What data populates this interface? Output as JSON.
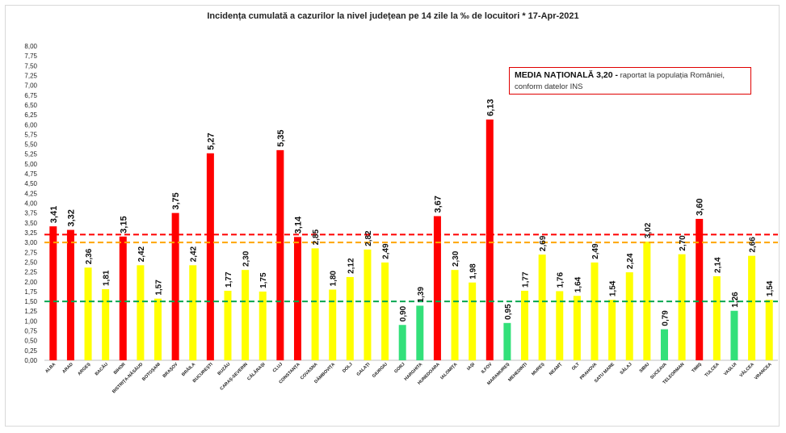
{
  "chart_data": {
    "type": "bar",
    "title": "Incidența cumulată a cazurilor la nivel județean pe 14 zile la ‰ de locuitori *   17-Apr-2021",
    "categories": [
      "ALBA",
      "ARAD",
      "ARGEȘ",
      "BACĂU",
      "BIHOR",
      "BISTRIȚA-NĂSĂUD",
      "BOTOȘANI",
      "BRAȘOV",
      "BRĂILA",
      "BUCUREȘTI",
      "BUZĂU",
      "CARAȘ-SEVERIN",
      "CĂLĂRAȘI",
      "CLUJ",
      "CONSTANȚA",
      "COVASNA",
      "DÂMBOVIȚA",
      "DOLJ",
      "GALAȚI",
      "GIURGIU",
      "GORJ",
      "HARGHITA",
      "HUNEDOARA",
      "IALOMIȚA",
      "IAȘI",
      "ILFOV",
      "MARAMUREȘ",
      "MEHEDINȚI",
      "MUREȘ",
      "NEAMȚ",
      "OLT",
      "PRAHOVA",
      "SATU MARE",
      "SĂLAJ",
      "SIBIU",
      "SUCEAVA",
      "TELEORMAN",
      "TIMIȘ",
      "TULCEA",
      "VASLUI",
      "VÂLCEA",
      "VRANCEA"
    ],
    "values": [
      3.41,
      3.32,
      2.36,
      1.81,
      3.15,
      2.42,
      1.57,
      3.75,
      2.42,
      5.27,
      1.77,
      2.3,
      1.75,
      5.35,
      3.14,
      2.85,
      1.8,
      2.12,
      2.82,
      2.49,
      0.9,
      1.39,
      3.67,
      2.3,
      1.98,
      6.13,
      0.95,
      1.77,
      2.69,
      1.76,
      1.64,
      2.49,
      1.54,
      2.24,
      3.02,
      0.79,
      2.7,
      3.6,
      2.14,
      1.26,
      2.66,
      1.54
    ],
    "value_labels": [
      "3,41",
      "3,32",
      "2,36",
      "1,81",
      "3,15",
      "2,42",
      "1,57",
      "3,75",
      "2,42",
      "5,27",
      "1,77",
      "2,30",
      "1,75",
      "5,35",
      "3,14",
      "2,85",
      "1,80",
      "2,12",
      "2,82",
      "2,49",
      "0,90",
      "1,39",
      "3,67",
      "2,30",
      "1,98",
      "6,13",
      "0,95",
      "1,77",
      "2,69",
      "1,76",
      "1,64",
      "2,49",
      "1,54",
      "2,24",
      "3,02",
      "0,79",
      "2,70",
      "3,60",
      "2,14",
      "1,26",
      "2,66",
      "1,54"
    ],
    "ylim": [
      0,
      8
    ],
    "yticks": [
      "0,00",
      "0,25",
      "0,50",
      "0,75",
      "1,00",
      "1,25",
      "1,50",
      "1,75",
      "2,00",
      "2,25",
      "2,50",
      "2,75",
      "3,00",
      "3,25",
      "3,50",
      "3,75",
      "4,00",
      "4,25",
      "4,50",
      "4,75",
      "5,00",
      "5,25",
      "5,50",
      "5,75",
      "6,00",
      "6,25",
      "6,50",
      "6,75",
      "7,00",
      "7,25",
      "7,50",
      "7,75",
      "8,00"
    ],
    "reference_lines": [
      {
        "value": 3.2,
        "color": "#ff0000"
      },
      {
        "value": 3.0,
        "color": "#ffa500"
      },
      {
        "value": 1.5,
        "color": "#00a651"
      }
    ],
    "colors": {
      "red": "#ff0000",
      "yellow": "#ffff00",
      "green": "#33e07a"
    },
    "grid": false,
    "xlabel": "",
    "ylabel": ""
  },
  "annotation": {
    "strong": "MEDIA NAȚIONALĂ  3,20 -",
    "text": " raportat la populația României, conform datelor INS"
  }
}
